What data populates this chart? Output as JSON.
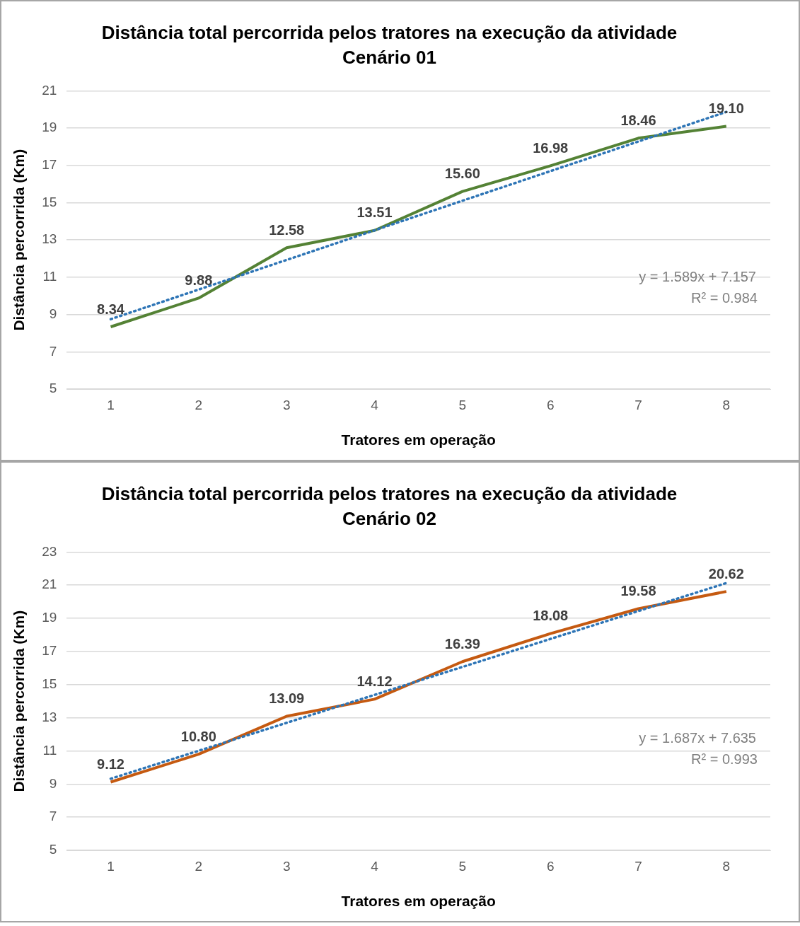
{
  "chart_data": [
    {
      "type": "line",
      "title": "Distância total percorrida pelos tratores na execução da atividade",
      "subtitle": "Cenário 01",
      "xlabel": "Tratores em operação",
      "ylabel": "Distância percorrida (Km)",
      "categories": [
        "1",
        "2",
        "3",
        "4",
        "5",
        "6",
        "7",
        "8"
      ],
      "series": [
        {
          "color": "#548235",
          "values": [
            8.34,
            9.88,
            12.58,
            13.51,
            15.6,
            16.98,
            18.46,
            19.1
          ],
          "value_labels": [
            "8.34",
            "9.88",
            "12.58",
            "13.51",
            "15.60",
            "16.98",
            "18.46",
            "19.10"
          ],
          "line_style": "solid"
        },
        {
          "type": "line",
          "color": "#2e75b6",
          "x": [
            "1",
            "8"
          ],
          "values": [
            8.75,
            19.87
          ],
          "line_style": "dotted"
        }
      ],
      "ylim": [
        5,
        21
      ],
      "yticks": [
        5,
        7,
        9,
        11,
        13,
        15,
        17,
        19,
        21
      ],
      "grid": "y",
      "legend": false,
      "marker": "none",
      "annotations": [
        "y = 1.589x + 7.157",
        "R² = 0.984"
      ]
    },
    {
      "type": "line",
      "title": "Distância total percorrida pelos tratores na execução da atividade",
      "subtitle": "Cenário 02",
      "xlabel": "Tratores em operação",
      "ylabel": "Distância percorrida (Km)",
      "categories": [
        "1",
        "2",
        "3",
        "4",
        "5",
        "6",
        "7",
        "8"
      ],
      "series": [
        {
          "color": "#c55a11",
          "values": [
            9.12,
            10.8,
            13.09,
            14.12,
            16.39,
            18.08,
            19.58,
            20.62
          ],
          "value_labels": [
            "9.12",
            "10.80",
            "13.09",
            "14.12",
            "16.39",
            "18.08",
            "19.58",
            "20.62"
          ],
          "line_style": "solid"
        },
        {
          "type": "line",
          "color": "#2e75b6",
          "x": [
            "1",
            "8"
          ],
          "values": [
            9.32,
            21.13
          ],
          "line_style": "dotted"
        }
      ],
      "ylim": [
        5,
        23
      ],
      "yticks": [
        5,
        7,
        9,
        11,
        13,
        15,
        17,
        19,
        21,
        23
      ],
      "grid": "y",
      "legend": false,
      "marker": "none",
      "annotations": [
        "y = 1.687x + 7.635",
        "R² = 0.993"
      ]
    }
  ]
}
